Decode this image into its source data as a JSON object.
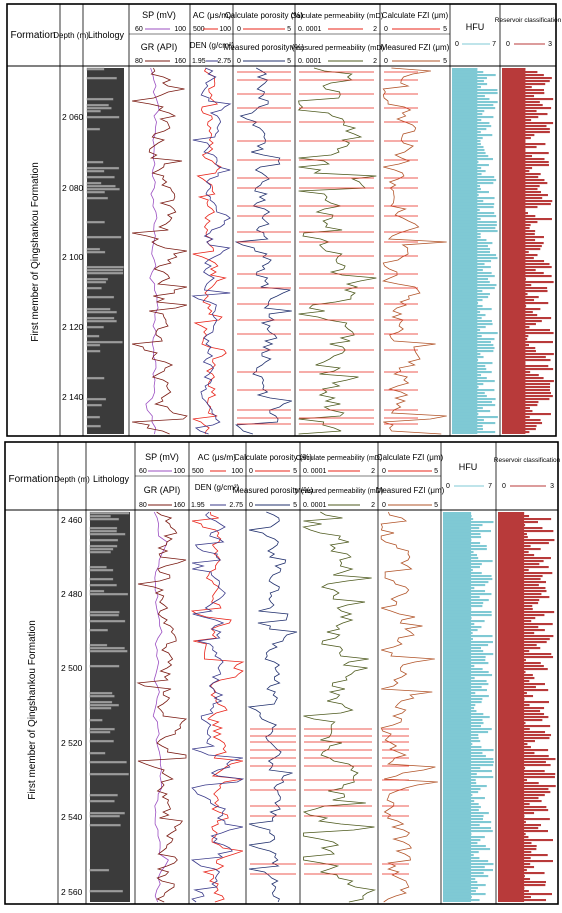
{
  "colors": {
    "sp": "#9b4fc2",
    "gr": "#7a1a12",
    "ac": "#e8241a",
    "den": "#3a3a8a",
    "calc_por": "#e8241a",
    "meas_por": "#22316e",
    "calc_perm": "#e8241a",
    "meas_perm": "#4e5a1e",
    "calc_fzi": "#e8241a",
    "meas_fzi": "#b2552a",
    "hfu": "#7fc9d4",
    "reservoir": "#b83a3a"
  },
  "panels": [
    {
      "headers": {
        "formation": "Formation",
        "depth": "Depth (m)",
        "lithology": "Lithology",
        "sp": {
          "name": "SP (mV)",
          "min": "60",
          "max": "100"
        },
        "gr": {
          "name": "GR (API)",
          "min": "80",
          "max": "160"
        },
        "ac": {
          "name": "AC (μs/m)",
          "min": "500",
          "max": "100"
        },
        "den": {
          "name": "DEN (g/cm³)",
          "min": "1.95",
          "max": "2.75"
        },
        "calc_por": {
          "name": "Calculate porosity (%)",
          "min": "0",
          "max": "5"
        },
        "meas_por": {
          "name": "Measured porosity (%)",
          "min": "0",
          "max": "5"
        },
        "calc_perm": {
          "name": "Calculate permeability (mD)",
          "min": "0. 0001",
          "max": "2"
        },
        "meas_perm": {
          "name": "Measured permeability (mD)",
          "min": "0. 0001",
          "max": "2"
        },
        "calc_fzi": {
          "name": "Calculate FZI (μm)",
          "min": "0",
          "max": "5"
        },
        "meas_fzi": {
          "name": "Measured FZI (μm)",
          "min": "0",
          "max": "5"
        },
        "hfu": {
          "name": "HFU",
          "min": "0",
          "max": "7"
        },
        "reservoir": {
          "name": "Reservoir classification",
          "min": "0",
          "max": "3"
        }
      },
      "formation_name": "First member of Qingshankou Formation",
      "depth_ticks": [
        "2 060",
        "2 080",
        "2 100",
        "2 120",
        "2 140"
      ]
    },
    {
      "headers": {
        "formation": "Formation",
        "depth": "Depth (m)",
        "lithology": "Lithology",
        "sp": {
          "name": "SP (mV)",
          "min": "60",
          "max": "100"
        },
        "gr": {
          "name": "GR (API)",
          "min": "80",
          "max": "160"
        },
        "ac": {
          "name": "AC (μs/m)",
          "min": "500",
          "max": "100"
        },
        "den": {
          "name": "DEN (g/cm³)",
          "min": "1.95",
          "max": "2.75"
        },
        "calc_por": {
          "name": "Calculate porosity (%)",
          "min": "0",
          "max": "5"
        },
        "meas_por": {
          "name": "Measured porosity (%)",
          "min": "0",
          "max": "5"
        },
        "calc_perm": {
          "name": "Calculate permeability (mD)",
          "min": "0. 0001",
          "max": "2"
        },
        "meas_perm": {
          "name": "Measured permeability (mD)",
          "min": "0. 0001",
          "max": "2"
        },
        "calc_fzi": {
          "name": "Calculate FZI (μm)",
          "min": "0",
          "max": "5"
        },
        "meas_fzi": {
          "name": "Measured FZI (μm)",
          "min": "0",
          "max": "5"
        },
        "hfu": {
          "name": "HFU",
          "min": "0",
          "max": "7"
        },
        "reservoir": {
          "name": "Reservoir classification",
          "min": "0",
          "max": "3"
        }
      },
      "formation_name": "First member of Qingshankou Formation",
      "depth_ticks": [
        "2 460",
        "2 480",
        "2 500",
        "2 520",
        "2 540",
        "2 560"
      ]
    }
  ]
}
